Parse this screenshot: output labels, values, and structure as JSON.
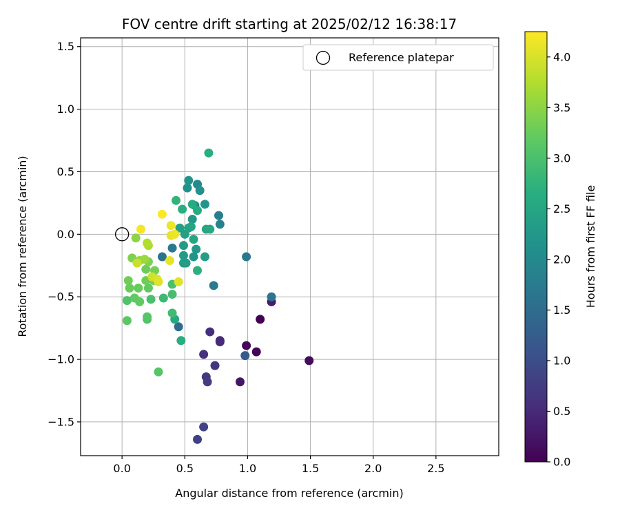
{
  "chart_data": {
    "type": "scatter",
    "title": "FOV centre drift starting at 2025/02/12 16:38:17",
    "xlabel": "Angular distance from reference (arcmin)",
    "ylabel": "Rotation from reference (arcmin)",
    "xlim": [
      -0.33,
      3.0
    ],
    "ylim": [
      -1.77,
      1.57
    ],
    "x_ticks": [
      "0.0",
      "0.5",
      "1.0",
      "1.5",
      "2.0",
      "2.5"
    ],
    "x_tick_values": [
      0,
      0.5,
      1.0,
      1.5,
      2.0,
      2.5
    ],
    "y_ticks": [
      "1.5",
      "1.0",
      "0.5",
      "0.0",
      "−0.5",
      "−1.0",
      "−1.5"
    ],
    "y_tick_values": [
      1.5,
      1.0,
      0.5,
      0.0,
      -0.5,
      -1.0,
      -1.5
    ],
    "grid": true,
    "legend": {
      "position": "top-right",
      "entries": [
        "Reference platepar"
      ]
    },
    "reference_point": {
      "x": 0.0,
      "y": 0.0
    },
    "colorbar": {
      "label": "Hours from first FF file",
      "colormap": "viridis",
      "range": [
        0.0,
        4.25
      ],
      "ticks": [
        "0.0",
        "0.5",
        "1.0",
        "1.5",
        "2.0",
        "2.5",
        "3.0",
        "3.5",
        "4.0"
      ],
      "tick_values": [
        0,
        0.5,
        1.0,
        1.5,
        2.0,
        2.5,
        3.0,
        3.5,
        4.0
      ]
    },
    "series": [
      {
        "points": [
          {
            "x": 1.1,
            "y": -0.68,
            "c": 0.0
          },
          {
            "x": 1.07,
            "y": -0.94,
            "c": 0.05
          },
          {
            "x": 0.99,
            "y": -0.89,
            "c": 0.1
          },
          {
            "x": 1.49,
            "y": -1.01,
            "c": 0.12
          },
          {
            "x": 0.94,
            "y": -1.18,
            "c": 0.25
          },
          {
            "x": 1.19,
            "y": -0.54,
            "c": 0.35
          },
          {
            "x": 0.78,
            "y": -0.85,
            "c": 0.45
          },
          {
            "x": 0.78,
            "y": -0.86,
            "c": 0.5
          },
          {
            "x": 0.7,
            "y": -0.78,
            "c": 0.55
          },
          {
            "x": 0.65,
            "y": -0.96,
            "c": 0.6
          },
          {
            "x": 0.74,
            "y": -1.05,
            "c": 0.65
          },
          {
            "x": 0.67,
            "y": -1.14,
            "c": 0.7
          },
          {
            "x": 0.68,
            "y": -1.18,
            "c": 0.75
          },
          {
            "x": 0.6,
            "y": -1.64,
            "c": 0.8
          },
          {
            "x": 0.65,
            "y": -1.54,
            "c": 0.85
          },
          {
            "x": 0.98,
            "y": -0.97,
            "c": 1.2
          },
          {
            "x": 0.45,
            "y": -0.74,
            "c": 1.5
          },
          {
            "x": 1.19,
            "y": -0.5,
            "c": 1.65
          },
          {
            "x": 0.99,
            "y": -0.18,
            "c": 1.7
          },
          {
            "x": 0.73,
            "y": -0.41,
            "c": 1.75
          },
          {
            "x": 0.77,
            "y": 0.15,
            "c": 1.8
          },
          {
            "x": 0.78,
            "y": 0.08,
            "c": 1.85
          },
          {
            "x": 0.32,
            "y": -0.18,
            "c": 1.6
          },
          {
            "x": 0.4,
            "y": -0.11,
            "c": 1.7
          },
          {
            "x": 0.58,
            "y": 0.23,
            "c": 1.9
          },
          {
            "x": 0.6,
            "y": 0.4,
            "c": 2.0
          },
          {
            "x": 0.62,
            "y": 0.35,
            "c": 2.1
          },
          {
            "x": 0.52,
            "y": 0.37,
            "c": 2.15
          },
          {
            "x": 0.53,
            "y": 0.43,
            "c": 2.2
          },
          {
            "x": 0.66,
            "y": 0.24,
            "c": 2.2
          },
          {
            "x": 0.56,
            "y": 0.12,
            "c": 2.25
          },
          {
            "x": 0.57,
            "y": -0.18,
            "c": 2.2
          },
          {
            "x": 0.59,
            "y": -0.12,
            "c": 2.25
          },
          {
            "x": 0.49,
            "y": -0.09,
            "c": 2.3
          },
          {
            "x": 0.49,
            "y": -0.17,
            "c": 2.3
          },
          {
            "x": 0.49,
            "y": -0.23,
            "c": 2.3
          },
          {
            "x": 0.51,
            "y": -0.23,
            "c": 2.35
          },
          {
            "x": 0.66,
            "y": -0.18,
            "c": 2.35
          },
          {
            "x": 0.5,
            "y": 0.0,
            "c": 2.4
          },
          {
            "x": 0.46,
            "y": 0.05,
            "c": 2.4
          },
          {
            "x": 0.53,
            "y": 0.05,
            "c": 2.45
          },
          {
            "x": 0.55,
            "y": 0.06,
            "c": 2.5
          },
          {
            "x": 0.67,
            "y": 0.04,
            "c": 2.5
          },
          {
            "x": 0.7,
            "y": 0.04,
            "c": 2.55
          },
          {
            "x": 0.6,
            "y": 0.19,
            "c": 2.6
          },
          {
            "x": 0.48,
            "y": 0.2,
            "c": 2.65
          },
          {
            "x": 0.69,
            "y": 0.65,
            "c": 2.65
          },
          {
            "x": 0.43,
            "y": 0.27,
            "c": 2.75
          },
          {
            "x": 0.56,
            "y": 0.24,
            "c": 2.6
          },
          {
            "x": 0.57,
            "y": -0.04,
            "c": 2.5
          },
          {
            "x": 0.6,
            "y": -0.29,
            "c": 2.7
          },
          {
            "x": 0.47,
            "y": -0.85,
            "c": 2.65
          },
          {
            "x": 0.42,
            "y": -0.68,
            "c": 2.55
          },
          {
            "x": 0.4,
            "y": -0.63,
            "c": 2.9
          },
          {
            "x": 0.33,
            "y": -0.51,
            "c": 2.85
          },
          {
            "x": 0.4,
            "y": -0.48,
            "c": 2.95
          },
          {
            "x": 0.4,
            "y": -0.4,
            "c": 3.0
          },
          {
            "x": 0.23,
            "y": -0.52,
            "c": 3.0
          },
          {
            "x": 0.2,
            "y": -0.68,
            "c": 3.05
          },
          {
            "x": 0.2,
            "y": -0.66,
            "c": 3.1
          },
          {
            "x": 0.04,
            "y": -0.53,
            "c": 3.05
          },
          {
            "x": 0.04,
            "y": -0.69,
            "c": 3.15
          },
          {
            "x": 0.14,
            "y": -0.54,
            "c": 3.2
          },
          {
            "x": 0.1,
            "y": -0.51,
            "c": 3.2
          },
          {
            "x": 0.06,
            "y": -0.43,
            "c": 3.25
          },
          {
            "x": 0.13,
            "y": -0.43,
            "c": 3.25
          },
          {
            "x": 0.21,
            "y": -0.43,
            "c": 3.2
          },
          {
            "x": 0.05,
            "y": -0.37,
            "c": 3.3
          },
          {
            "x": 0.19,
            "y": -0.37,
            "c": 3.3
          },
          {
            "x": 0.25,
            "y": -0.37,
            "c": 3.35
          },
          {
            "x": 0.26,
            "y": -0.29,
            "c": 3.35
          },
          {
            "x": 0.19,
            "y": -0.28,
            "c": 3.3
          },
          {
            "x": 0.21,
            "y": -0.22,
            "c": 3.4
          },
          {
            "x": 0.08,
            "y": -0.19,
            "c": 3.4
          },
          {
            "x": 0.12,
            "y": -0.22,
            "c": 3.5
          },
          {
            "x": 0.14,
            "y": -0.21,
            "c": 3.55
          },
          {
            "x": 0.18,
            "y": -0.2,
            "c": 3.6
          },
          {
            "x": 0.21,
            "y": -0.09,
            "c": 3.7
          },
          {
            "x": 0.2,
            "y": -0.07,
            "c": 3.75
          },
          {
            "x": 0.11,
            "y": -0.03,
            "c": 3.5
          },
          {
            "x": 0.29,
            "y": -1.1,
            "c": 3.1
          },
          {
            "x": 0.12,
            "y": -0.23,
            "c": 3.9
          },
          {
            "x": 0.24,
            "y": -0.34,
            "c": 3.95
          },
          {
            "x": 0.28,
            "y": -0.36,
            "c": 4.0
          },
          {
            "x": 0.29,
            "y": -0.38,
            "c": 4.05
          },
          {
            "x": 0.45,
            "y": -0.38,
            "c": 4.05
          },
          {
            "x": 0.38,
            "y": -0.21,
            "c": 4.1
          },
          {
            "x": 0.39,
            "y": -0.01,
            "c": 4.1
          },
          {
            "x": 0.42,
            "y": 0.0,
            "c": 4.15
          },
          {
            "x": 0.39,
            "y": 0.07,
            "c": 4.15
          },
          {
            "x": 0.15,
            "y": 0.04,
            "c": 4.2
          },
          {
            "x": 0.32,
            "y": 0.16,
            "c": 4.25
          }
        ]
      }
    ]
  }
}
